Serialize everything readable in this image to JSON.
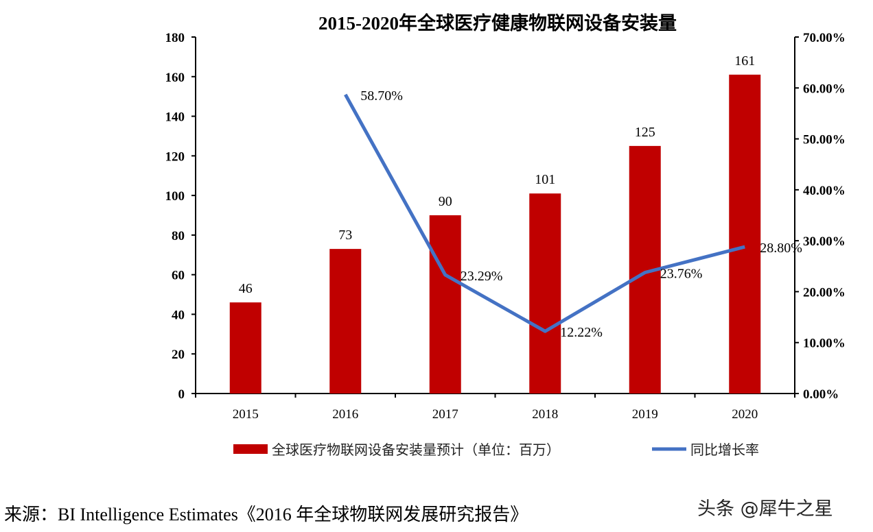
{
  "chart_data": {
    "type": "bar+line",
    "title": "2015-2020年全球医疗健康物联网设备安装量",
    "categories": [
      "2015",
      "2016",
      "2017",
      "2018",
      "2019",
      "2020"
    ],
    "series": [
      {
        "name": "全球医疗物联网设备安装量预计（单位：百万）",
        "type": "bar",
        "axis": "left",
        "color": "#C00000",
        "values": [
          46,
          73,
          90,
          101,
          125,
          161
        ],
        "labels": [
          "46",
          "73",
          "90",
          "101",
          "125",
          "161"
        ]
      },
      {
        "name": "同比增长率",
        "type": "line",
        "axis": "right",
        "color": "#4472C4",
        "values": [
          null,
          58.7,
          23.29,
          12.22,
          23.76,
          28.8
        ],
        "labels": [
          "",
          "58.70%",
          "23.29%",
          "12.22%",
          "23.76%",
          "28.80%"
        ]
      }
    ],
    "left_axis": {
      "ylim": [
        0,
        180
      ],
      "ticks": [
        "0",
        "20",
        "40",
        "60",
        "80",
        "100",
        "120",
        "140",
        "160",
        "180"
      ]
    },
    "right_axis": {
      "ylim": [
        0,
        70
      ],
      "ticks": [
        "0.00%",
        "10.00%",
        "20.00%",
        "30.00%",
        "40.00%",
        "50.00%",
        "60.00%",
        "70.00%"
      ]
    },
    "grid": false,
    "legend_position": "bottom"
  },
  "source": "来源：BI Intelligence Estimates《2016 年全球物联网发展研究报告》",
  "watermark": "头条 @犀牛之星"
}
